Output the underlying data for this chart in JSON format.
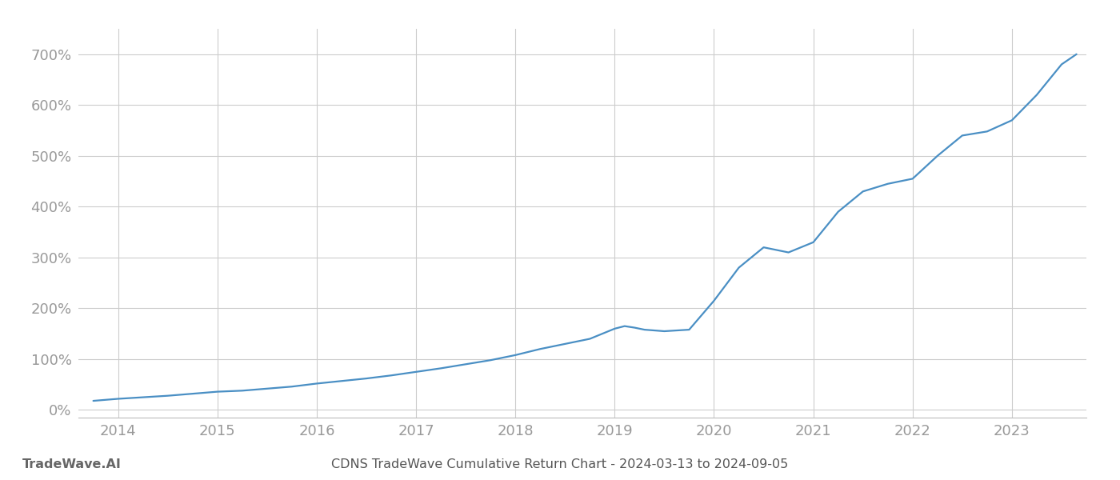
{
  "title": "CDNS TradeWave Cumulative Return Chart - 2024-03-13 to 2024-09-05",
  "watermark": "TradeWave.AI",
  "line_color": "#4a8fc4",
  "background_color": "#ffffff",
  "grid_color": "#cccccc",
  "x_values": [
    2013.75,
    2014.0,
    2014.25,
    2014.5,
    2014.75,
    2015.0,
    2015.25,
    2015.5,
    2015.75,
    2016.0,
    2016.25,
    2016.5,
    2016.75,
    2017.0,
    2017.25,
    2017.5,
    2017.75,
    2018.0,
    2018.25,
    2018.5,
    2018.75,
    2019.0,
    2019.1,
    2019.2,
    2019.3,
    2019.5,
    2019.75,
    2020.0,
    2020.25,
    2020.5,
    2020.75,
    2021.0,
    2021.25,
    2021.5,
    2021.75,
    2022.0,
    2022.25,
    2022.5,
    2022.75,
    2023.0,
    2023.25,
    2023.5,
    2023.65
  ],
  "y_values": [
    18,
    22,
    25,
    28,
    32,
    36,
    38,
    42,
    46,
    52,
    57,
    62,
    68,
    75,
    82,
    90,
    98,
    108,
    120,
    130,
    140,
    160,
    165,
    162,
    158,
    155,
    158,
    215,
    280,
    320,
    310,
    330,
    390,
    430,
    445,
    455,
    500,
    540,
    548,
    570,
    620,
    680,
    700
  ],
  "xlim": [
    2013.6,
    2023.75
  ],
  "ylim": [
    -15,
    750
  ],
  "yticks": [
    0,
    100,
    200,
    300,
    400,
    500,
    600,
    700
  ],
  "xticks": [
    2014,
    2015,
    2016,
    2017,
    2018,
    2019,
    2020,
    2021,
    2022,
    2023
  ],
  "tick_label_color": "#999999",
  "title_color": "#555555",
  "watermark_color": "#666666",
  "line_width": 1.6,
  "tick_fontsize": 13,
  "title_fontsize": 11.5
}
